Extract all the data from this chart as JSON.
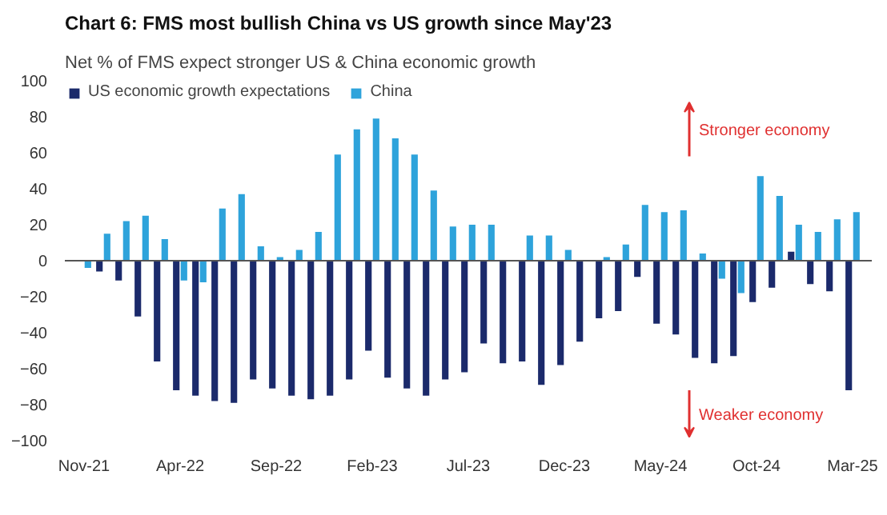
{
  "chart_data": {
    "type": "bar",
    "title": "Chart 6: FMS most bullish China vs US growth since May'23",
    "subtitle": "Net % of FMS expect stronger US & China economic growth",
    "categories": [
      "Nov-21",
      null,
      null,
      null,
      null,
      "Apr-22",
      null,
      null,
      null,
      null,
      "Sep-22",
      null,
      null,
      null,
      null,
      "Feb-23",
      null,
      null,
      null,
      null,
      "Jul-23",
      null,
      null,
      null,
      null,
      "Dec-23",
      null,
      null,
      null,
      null,
      "May-24",
      null,
      null,
      null,
      null,
      "Oct-24",
      null,
      null,
      null,
      null,
      "Mar-25"
    ],
    "series": [
      {
        "name": "US economic growth expectations",
        "color": "#1b2a6b",
        "values": [
          null,
          -6,
          -11,
          -31,
          -56,
          -72,
          -75,
          -78,
          -79,
          -66,
          -71,
          -75,
          -77,
          -75,
          -66,
          -50,
          -65,
          -71,
          -75,
          -66,
          -62,
          -46,
          -57,
          -56,
          -69,
          -58,
          -45,
          -32,
          -28,
          -9,
          -35,
          -41,
          -54,
          -57,
          -53,
          -23,
          -15,
          5,
          -13,
          -17,
          -72
        ]
      },
      {
        "name": "China",
        "color": "#2ea3db",
        "values": [
          -4,
          15,
          22,
          25,
          12,
          -11,
          -12,
          29,
          37,
          8,
          2,
          6,
          16,
          59,
          73,
          79,
          68,
          59,
          39,
          19,
          20,
          20,
          0,
          14,
          14,
          6,
          0,
          2,
          9,
          31,
          27,
          28,
          4,
          -10,
          -18,
          47,
          36,
          20,
          16,
          23,
          27
        ]
      }
    ],
    "ylim": [
      -100,
      100
    ],
    "yticks": [
      -100,
      -80,
      -60,
      -40,
      -20,
      0,
      20,
      40,
      60,
      80,
      100
    ],
    "grid": false,
    "legend": "top left",
    "ref_lines": [
      {
        "axis": "y",
        "value": 0,
        "color": "#555555"
      }
    ],
    "annotations": [
      "Stronger economy",
      "Weaker economy"
    ]
  }
}
